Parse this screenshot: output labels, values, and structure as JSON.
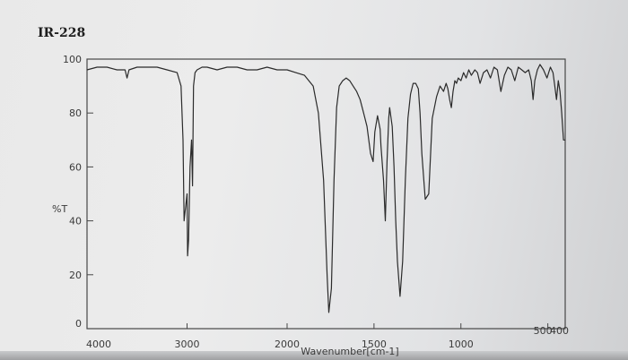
{
  "chart_data": {
    "type": "line",
    "title": "IR-228",
    "xlabel": "Wavenumber[cm-1]",
    "ylabel": "%T",
    "xlim": [
      4000,
      400
    ],
    "ylim": [
      0,
      100
    ],
    "x_ticks": [
      {
        "value": 4000,
        "label": "4000"
      },
      {
        "value": 3000,
        "label": "3000"
      },
      {
        "value": 2000,
        "label": "2000"
      },
      {
        "value": 1500,
        "label": "1500"
      },
      {
        "value": 1000,
        "label": "1000"
      },
      {
        "value": 500,
        "label": "500"
      },
      {
        "value": 400,
        "label": "400"
      }
    ],
    "y_ticks": [
      {
        "value": 0,
        "label": "0"
      },
      {
        "value": 20,
        "label": "20"
      },
      {
        "value": 40,
        "label": "40"
      },
      {
        "value": 60,
        "label": "60"
      },
      {
        "value": 80,
        "label": "80"
      },
      {
        "value": 100,
        "label": "100"
      }
    ],
    "series": [
      {
        "x": [
          4000,
          3900,
          3800,
          3700,
          3620,
          3600,
          3580,
          3500,
          3300,
          3200,
          3100,
          3060,
          3040,
          3030,
          3000,
          2995,
          2985,
          2970,
          2955,
          2945,
          2935,
          2920,
          2900,
          2850,
          2800,
          2700,
          2600,
          2500,
          2400,
          2300,
          2200,
          2100,
          2000,
          1950,
          1900,
          1850,
          1820,
          1790,
          1770,
          1760,
          1745,
          1730,
          1715,
          1700,
          1680,
          1660,
          1640,
          1620,
          1600,
          1580,
          1560,
          1540,
          1520,
          1505,
          1495,
          1480,
          1465,
          1460,
          1445,
          1435,
          1425,
          1415,
          1410,
          1395,
          1385,
          1375,
          1365,
          1350,
          1335,
          1320,
          1305,
          1290,
          1275,
          1260,
          1245,
          1235,
          1225,
          1205,
          1185,
          1165,
          1140,
          1120,
          1100,
          1085,
          1075,
          1065,
          1055,
          1045,
          1035,
          1025,
          1015,
          1000,
          985,
          970,
          955,
          940,
          920,
          905,
          890,
          870,
          850,
          830,
          810,
          790,
          770,
          750,
          730,
          710,
          690,
          670,
          650,
          630,
          610,
          595,
          585,
          575,
          560,
          545,
          525,
          505,
          485,
          470,
          460,
          450,
          440,
          430,
          420,
          410,
          400
        ],
        "y": [
          96,
          97,
          97,
          96,
          96,
          93,
          96,
          97,
          97,
          96,
          95,
          90,
          70,
          40,
          50,
          27,
          33,
          60,
          70,
          53,
          90,
          95,
          96,
          97,
          97,
          96,
          97,
          97,
          96,
          96,
          97,
          96,
          96,
          95,
          94,
          90,
          80,
          55,
          20,
          6,
          15,
          55,
          82,
          90,
          92,
          93,
          92,
          90,
          88,
          85,
          80,
          75,
          65,
          62,
          73,
          79,
          74,
          68,
          55,
          40,
          62,
          78,
          82,
          75,
          60,
          40,
          25,
          12,
          25,
          55,
          78,
          87,
          91,
          91,
          89,
          80,
          65,
          48,
          50,
          78,
          86,
          90,
          88,
          91,
          89,
          85,
          82,
          88,
          92,
          91,
          93,
          92,
          95,
          93,
          96,
          94,
          96,
          95,
          91,
          95,
          96,
          93,
          97,
          96,
          88,
          94,
          97,
          96,
          92,
          97,
          96,
          95,
          96,
          92,
          85,
          92,
          96,
          98,
          96,
          93,
          97,
          95,
          90,
          85,
          92,
          88,
          80,
          70,
          70
        ]
      }
    ]
  }
}
